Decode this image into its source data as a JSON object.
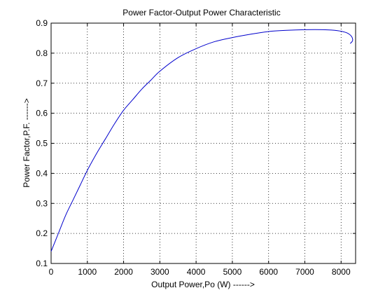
{
  "chart_data": {
    "type": "line",
    "title": "Power Factor-Output Power Characteristic",
    "xlabel": "Output Power,Po (W) ------>",
    "ylabel": "Power Factor,P.F. ------>",
    "xlim": [
      0,
      8400
    ],
    "ylim": [
      0.1,
      0.9
    ],
    "xticks": [
      0,
      1000,
      2000,
      3000,
      4000,
      5000,
      6000,
      7000,
      8000
    ],
    "yticks": [
      0.1,
      0.2,
      0.3,
      0.4,
      0.5,
      0.6,
      0.7,
      0.8,
      0.9
    ],
    "xtick_labels": [
      "0",
      "1000",
      "2000",
      "3000",
      "4000",
      "5000",
      "6000",
      "7000",
      "8000"
    ],
    "ytick_labels": [
      "0.1",
      "0.2",
      "0.3",
      "0.4",
      "0.5",
      "0.6",
      "0.7",
      "0.8",
      "0.9"
    ],
    "grid": true,
    "line_color": "#0000cc",
    "series": [
      {
        "x": [
          0,
          200,
          400,
          600,
          800,
          1000,
          1250,
          1500,
          1750,
          2000,
          2250,
          2500,
          2750,
          3000,
          3500,
          4000,
          4500,
          5000,
          5500,
          6000,
          6500,
          7000,
          7500,
          7900,
          8150,
          8280,
          8320,
          8300,
          8250
        ],
        "y": [
          0.14,
          0.2,
          0.26,
          0.31,
          0.36,
          0.41,
          0.465,
          0.515,
          0.565,
          0.61,
          0.645,
          0.68,
          0.71,
          0.74,
          0.785,
          0.815,
          0.838,
          0.852,
          0.863,
          0.872,
          0.876,
          0.878,
          0.878,
          0.875,
          0.868,
          0.857,
          0.845,
          0.838,
          0.832
        ]
      }
    ]
  }
}
